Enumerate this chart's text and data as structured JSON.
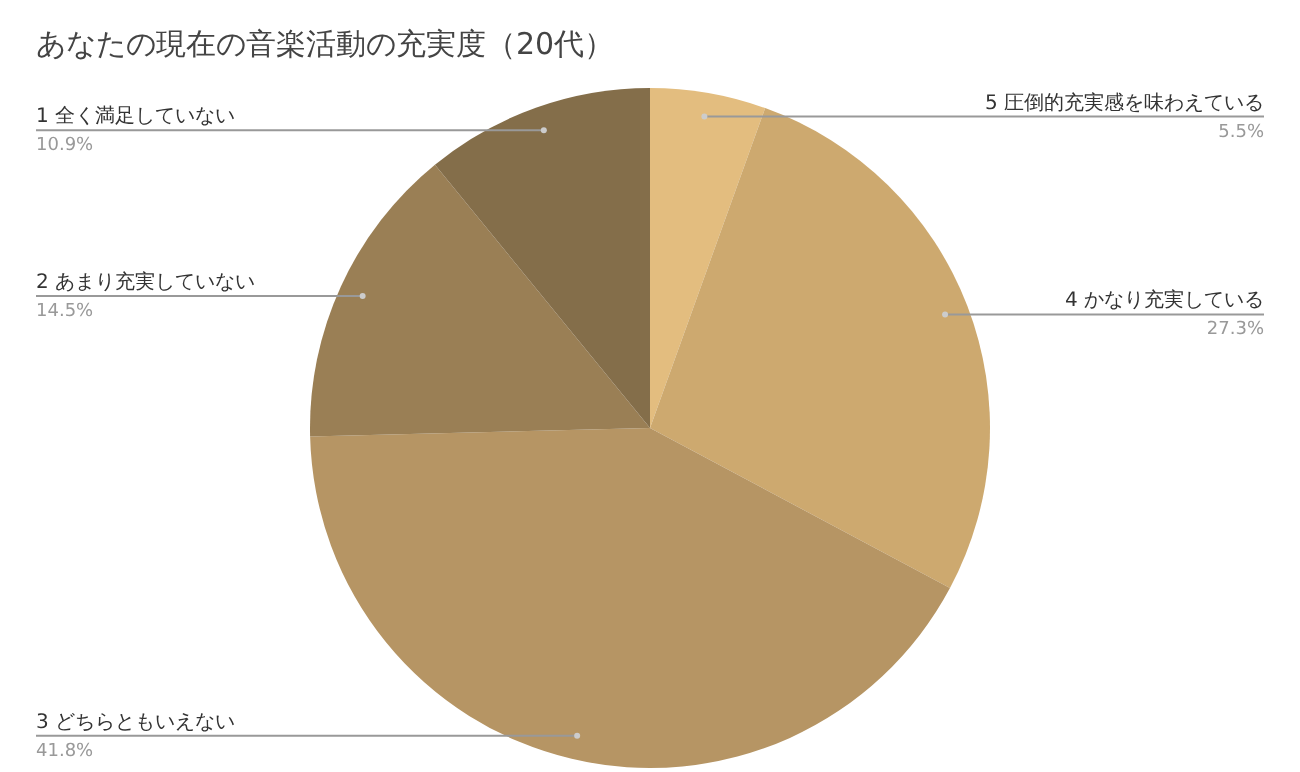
{
  "chart_data": {
    "type": "pie",
    "title": "あなたの現在の音楽活動の充実度（20代）",
    "categories": [
      "5 圧倒的充実感を味わえている",
      "4 かなり充実している",
      "3 どちらともいえない",
      "2 あまり充実していない",
      "1 全く満足していない"
    ],
    "values": [
      5.5,
      27.3,
      41.8,
      14.5,
      10.9
    ],
    "colors": [
      "#e3bd7f",
      "#cda96f",
      "#b69564",
      "#9a7f55",
      "#846e4a"
    ],
    "value_labels": [
      "5.5%",
      "27.3%",
      "41.8%",
      "14.5%",
      "10.9%"
    ]
  }
}
